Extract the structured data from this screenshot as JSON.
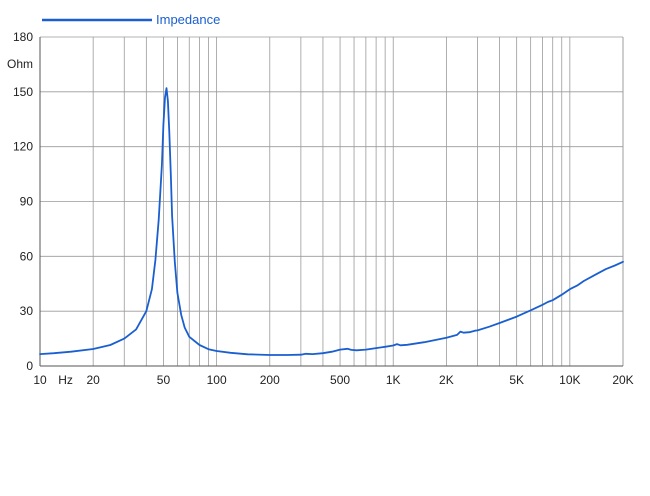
{
  "chart_data": {
    "type": "line",
    "title": "",
    "xlabel": "Hz",
    "ylabel": "Ohm",
    "x_scale": "log",
    "xlim": [
      10,
      20000
    ],
    "ylim": [
      0,
      180
    ],
    "grid": true,
    "legend_position": "top-left",
    "x_ticks": [
      10,
      20,
      50,
      100,
      200,
      500,
      1000,
      2000,
      5000,
      10000,
      20000
    ],
    "x_tick_labels": [
      "10",
      "20",
      "50",
      "100",
      "200",
      "500",
      "1K",
      "2K",
      "5K",
      "10K",
      "20K"
    ],
    "y_ticks": [
      0,
      30,
      60,
      90,
      120,
      150,
      180
    ],
    "y_tick_labels": [
      "0",
      "30",
      "60",
      "90",
      "120",
      "150",
      "180"
    ],
    "series": [
      {
        "name": "Impedance",
        "color": "#1a5fd0",
        "x": [
          10,
          12,
          15,
          20,
          25,
          30,
          35,
          40,
          43,
          45,
          47,
          49,
          50,
          51,
          52,
          53,
          54,
          55,
          56,
          58,
          60,
          63,
          66,
          70,
          80,
          90,
          100,
          120,
          150,
          200,
          250,
          300,
          320,
          350,
          400,
          450,
          500,
          550,
          580,
          620,
          700,
          800,
          900,
          1000,
          1050,
          1100,
          1200,
          1500,
          2000,
          2300,
          2400,
          2500,
          2700,
          2900,
          3000,
          3500,
          4000,
          5000,
          6000,
          7000,
          7500,
          8000,
          9000,
          10000,
          11000,
          12000,
          14000,
          16000,
          18000,
          20000
        ],
        "y": [
          6.5,
          7,
          7.8,
          9.3,
          11.5,
          15,
          20,
          30,
          42,
          58,
          80,
          110,
          132,
          147,
          152,
          145,
          128,
          105,
          82,
          57,
          40,
          28,
          21,
          16,
          11.5,
          9.2,
          8.2,
          7.2,
          6.4,
          6,
          6,
          6.2,
          6.7,
          6.5,
          7,
          7.8,
          9,
          9.4,
          8.8,
          8.6,
          9,
          9.8,
          10.5,
          11.2,
          12,
          11.3,
          11.6,
          13,
          15.5,
          17,
          18.8,
          18.2,
          18.5,
          19.3,
          19.5,
          21.5,
          23.5,
          27,
          30.5,
          33.5,
          35,
          36,
          39,
          42,
          44,
          46.5,
          50,
          53,
          55,
          57
        ]
      }
    ]
  }
}
